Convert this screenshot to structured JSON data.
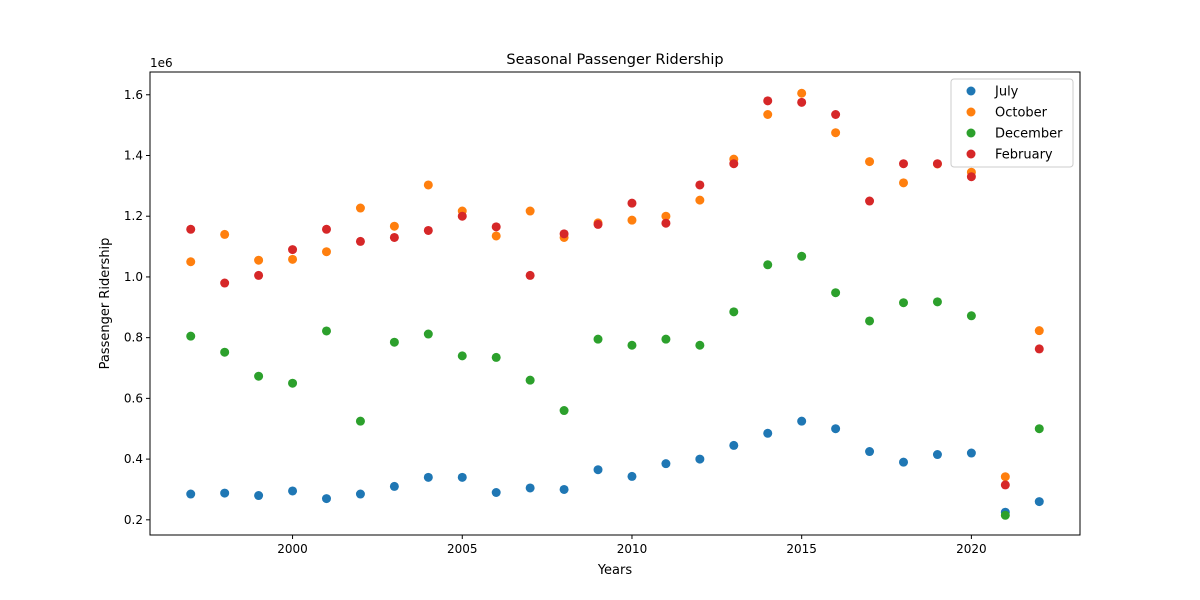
{
  "chart_data": {
    "type": "scatter",
    "title": "Seasonal Passenger Ridership",
    "xlabel": "Years",
    "ylabel": "Passenger Ridership",
    "offset_label": "1e6",
    "xlim": [
      1995.8,
      2023.2
    ],
    "ylim": [
      0.15,
      1.675
    ],
    "x_ticks": [
      2000,
      2005,
      2010,
      2015,
      2020
    ],
    "x_tick_labels": [
      "2000",
      "2005",
      "2010",
      "2015",
      "2020"
    ],
    "y_ticks": [
      0.2,
      0.4,
      0.6,
      0.8,
      1.0,
      1.2,
      1.4,
      1.6
    ],
    "y_tick_labels": [
      "0.2",
      "0.4",
      "0.6",
      "0.8",
      "1.0",
      "1.2",
      "1.4",
      "1.6"
    ],
    "grid": false,
    "legend_position": "top-right",
    "x": [
      1997,
      1998,
      1999,
      2000,
      2001,
      2002,
      2003,
      2004,
      2005,
      2006,
      2007,
      2008,
      2009,
      2010,
      2011,
      2012,
      2013,
      2014,
      2015,
      2016,
      2017,
      2018,
      2019,
      2020,
      2021,
      2022
    ],
    "series": [
      {
        "name": "July",
        "color": "#1f77b4",
        "values": [
          0.285,
          0.288,
          0.28,
          0.295,
          0.27,
          0.285,
          0.31,
          0.34,
          0.34,
          0.29,
          0.305,
          0.3,
          0.365,
          0.343,
          0.385,
          0.4,
          0.445,
          0.485,
          0.525,
          0.5,
          0.425,
          0.39,
          0.415,
          0.42,
          0.225,
          0.26
        ]
      },
      {
        "name": "October",
        "color": "#ff7f0e",
        "values": [
          1.05,
          1.14,
          1.055,
          1.058,
          1.083,
          1.227,
          1.167,
          1.303,
          1.217,
          1.135,
          1.217,
          1.13,
          1.178,
          1.187,
          1.2,
          1.253,
          1.388,
          1.535,
          1.605,
          1.475,
          1.38,
          1.31,
          1.372,
          1.345,
          0.342,
          0.823
        ]
      },
      {
        "name": "December",
        "color": "#2ca02c",
        "values": [
          0.805,
          0.752,
          0.673,
          0.65,
          0.822,
          0.525,
          0.785,
          0.812,
          0.74,
          0.735,
          0.66,
          0.56,
          0.795,
          0.775,
          0.795,
          0.775,
          0.885,
          1.04,
          1.068,
          0.948,
          0.855,
          0.915,
          0.918,
          0.872,
          0.215,
          0.5
        ]
      },
      {
        "name": "February",
        "color": "#d62728",
        "values": [
          1.157,
          0.98,
          1.005,
          1.09,
          1.157,
          1.117,
          1.13,
          1.153,
          1.2,
          1.165,
          1.005,
          1.142,
          1.173,
          1.243,
          1.177,
          1.303,
          1.373,
          1.58,
          1.575,
          1.535,
          1.25,
          1.373,
          1.373,
          1.33,
          0.315,
          0.763
        ]
      }
    ]
  }
}
